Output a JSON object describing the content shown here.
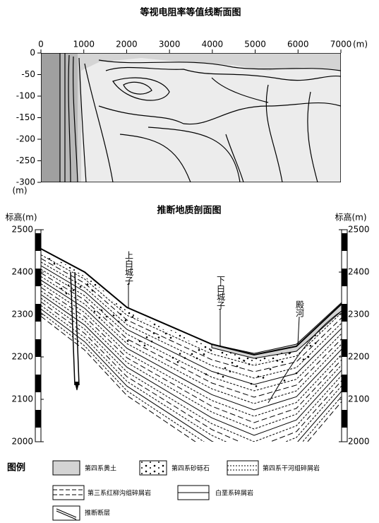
{
  "contour": {
    "title": "等视电阻率等值线断面图",
    "xticks": [
      0,
      1000,
      2000,
      3000,
      4000,
      5000,
      6000,
      7000
    ],
    "x_unit": "(m)",
    "yticks": [
      0,
      -50,
      -100,
      -150,
      -200,
      -250,
      -300
    ],
    "y_unit": "(m)"
  },
  "section": {
    "title": "推断地质剖面图",
    "left_axis_label": "标高(m)",
    "right_axis_label": "标高(m)",
    "ticks": [
      2000,
      2100,
      2200,
      2300,
      2400,
      2500
    ],
    "places": [
      "上白城子",
      "下白城子",
      "殿河"
    ]
  },
  "legend": {
    "title": "图例",
    "items": [
      "第四系黄土",
      "第四系砂砾石",
      "第四系干河组碎屑岩",
      "第三系红柳沟组碎屑岩",
      "白垩系碎屑岩",
      "推断断层"
    ]
  }
}
